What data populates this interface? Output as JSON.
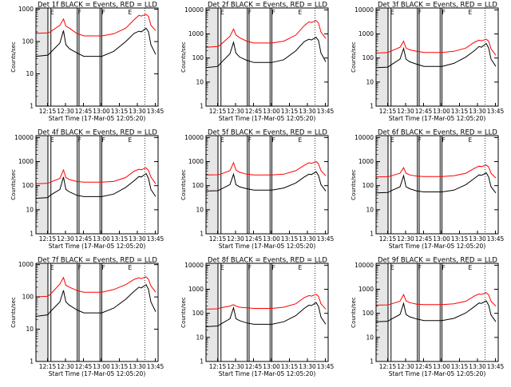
{
  "colors": {
    "events": "#000000",
    "lld": "#ff0000",
    "background": "#ffffff",
    "axes": "#000000"
  },
  "common": {
    "ylabel": "Counts/sec",
    "xlabel": "Start Time (17-Mar-05 12:05:20)",
    "xticks": [
      "12:15",
      "12:30",
      "12:45",
      "13:00",
      "13:15",
      "13:30",
      "13:45"
    ],
    "xtick_minutes": [
      9.67,
      24.67,
      39.67,
      54.67,
      69.67,
      84.67,
      99.67
    ],
    "xlim_minutes_from_start": [
      0,
      102
    ],
    "ylim": [
      1,
      12000
    ],
    "yscale": "log",
    "decade_ticks": [
      {
        "value": 1,
        "label": "1"
      },
      {
        "value": 10,
        "label": "10"
      },
      {
        "value": 100,
        "label": "100"
      },
      {
        "value": 1000,
        "label": "1000"
      },
      {
        "value": 10000,
        "label": "10000"
      }
    ],
    "flag_markers": [
      {
        "minute": 12,
        "label": "E"
      },
      {
        "minute": 35,
        "label": "F"
      },
      {
        "minute": 55,
        "label": "F"
      },
      {
        "minute": 77,
        "label": "E"
      }
    ],
    "solid_vlines_minutes": [
      10,
      12.5,
      34.5,
      36,
      53.5,
      55
    ],
    "dotted_vlines_minutes": [
      91
    ],
    "gray_band_minutes": [
      0,
      10
    ]
  },
  "chart_data": [
    {
      "type": "line",
      "title": "Det 1f BLACK = Events, RED = LLD",
      "ytick_labels": [
        "1",
        "10",
        "100",
        "1000"
      ],
      "ylim": [
        1,
        1100
      ],
      "series": [
        {
          "color": "#ff0000",
          "x": [
            0,
            10,
            12,
            20,
            23,
            25,
            28,
            34,
            40,
            55,
            65,
            75,
            82,
            86,
            88,
            92,
            94,
            96,
            100
          ],
          "y": [
            180,
            185,
            200,
            320,
            500,
            300,
            260,
            180,
            150,
            150,
            175,
            260,
            480,
            650,
            620,
            700,
            600,
            320,
            220
          ]
        },
        {
          "color": "#000000",
          "x": [
            0,
            10,
            12,
            20,
            23,
            25,
            28,
            34,
            40,
            55,
            65,
            75,
            82,
            86,
            88,
            92,
            94,
            96,
            100
          ],
          "y": [
            35,
            38,
            45,
            90,
            220,
            80,
            60,
            45,
            35,
            35,
            50,
            100,
            180,
            210,
            200,
            260,
            200,
            80,
            40
          ]
        }
      ]
    },
    {
      "type": "line",
      "title": "Det 2f BLACK = Events, RED = LLD",
      "ytick_labels": [
        "1",
        "10",
        "100",
        "1000",
        "10000"
      ],
      "ylim": [
        1,
        12000
      ],
      "series": [
        {
          "color": "#ff0000",
          "x": [
            0,
            10,
            12,
            20,
            23,
            25,
            28,
            34,
            40,
            55,
            65,
            75,
            82,
            86,
            88,
            92,
            94,
            96,
            100
          ],
          "y": [
            280,
            300,
            350,
            800,
            1600,
            900,
            700,
            500,
            420,
            420,
            500,
            900,
            2200,
            3200,
            3000,
            3600,
            2800,
            1200,
            650
          ]
        },
        {
          "color": "#000000",
          "x": [
            0,
            10,
            12,
            20,
            23,
            25,
            28,
            34,
            40,
            55,
            65,
            75,
            82,
            86,
            88,
            92,
            94,
            96,
            100
          ],
          "y": [
            40,
            45,
            60,
            150,
            450,
            160,
            110,
            80,
            65,
            65,
            85,
            200,
            480,
            600,
            560,
            720,
            520,
            160,
            70
          ]
        }
      ]
    },
    {
      "type": "line",
      "title": "Det 3f BLACK = Events, RED = LLD",
      "ytick_labels": [
        "1",
        "10",
        "100",
        "1000",
        "10000"
      ],
      "ylim": [
        1,
        12000
      ],
      "series": [
        {
          "color": "#ff0000",
          "x": [
            0,
            10,
            12,
            20,
            23,
            25,
            28,
            34,
            40,
            55,
            65,
            75,
            82,
            86,
            88,
            92,
            94,
            96,
            100
          ],
          "y": [
            160,
            170,
            190,
            280,
            500,
            260,
            220,
            190,
            170,
            170,
            190,
            260,
            450,
            550,
            520,
            600,
            500,
            240,
            130
          ]
        },
        {
          "color": "#000000",
          "x": [
            0,
            10,
            12,
            20,
            23,
            25,
            28,
            34,
            40,
            55,
            65,
            75,
            82,
            86,
            88,
            92,
            94,
            96,
            100
          ],
          "y": [
            40,
            42,
            50,
            90,
            250,
            90,
            70,
            55,
            45,
            45,
            60,
            110,
            200,
            300,
            280,
            400,
            260,
            90,
            45
          ]
        }
      ]
    },
    {
      "type": "line",
      "title": "Det 4f BLACK = Events, RED = LLD",
      "ytick_labels": [
        "1",
        "10",
        "100",
        "1000",
        "10000"
      ],
      "ylim": [
        1,
        12000
      ],
      "series": [
        {
          "color": "#ff0000",
          "x": [
            0,
            10,
            12,
            20,
            23,
            25,
            28,
            34,
            40,
            55,
            65,
            75,
            82,
            86,
            88,
            92,
            94,
            96,
            100
          ],
          "y": [
            120,
            125,
            140,
            200,
            450,
            220,
            180,
            150,
            140,
            140,
            150,
            220,
            400,
            480,
            460,
            550,
            430,
            230,
            120
          ]
        },
        {
          "color": "#000000",
          "x": [
            0,
            10,
            12,
            20,
            23,
            25,
            28,
            34,
            40,
            55,
            65,
            75,
            82,
            86,
            88,
            92,
            94,
            96,
            100
          ],
          "y": [
            30,
            32,
            40,
            70,
            230,
            70,
            55,
            40,
            35,
            35,
            45,
            85,
            160,
            240,
            230,
            320,
            200,
            70,
            35
          ]
        }
      ]
    },
    {
      "type": "line",
      "title": "Det 5f BLACK = Events, RED = LLD",
      "ytick_labels": [
        "1",
        "10",
        "100",
        "1000",
        "10000"
      ],
      "ylim": [
        1,
        12000
      ],
      "series": [
        {
          "color": "#ff0000",
          "x": [
            0,
            10,
            12,
            20,
            23,
            25,
            28,
            34,
            40,
            55,
            65,
            75,
            82,
            86,
            88,
            92,
            94,
            96,
            100
          ],
          "y": [
            280,
            285,
            300,
            420,
            900,
            450,
            360,
            300,
            280,
            280,
            300,
            420,
            700,
            900,
            850,
            1000,
            800,
            420,
            260
          ]
        },
        {
          "color": "#000000",
          "x": [
            0,
            10,
            12,
            20,
            23,
            25,
            28,
            34,
            40,
            55,
            65,
            75,
            82,
            86,
            88,
            92,
            94,
            96,
            100
          ],
          "y": [
            60,
            62,
            70,
            110,
            300,
            110,
            90,
            75,
            65,
            65,
            80,
            130,
            230,
            300,
            290,
            380,
            260,
            110,
            60
          ]
        }
      ]
    },
    {
      "type": "line",
      "title": "Det 6f BLACK = Events, RED = LLD",
      "ytick_labels": [
        "1",
        "10",
        "100",
        "1000",
        "10000"
      ],
      "ylim": [
        1,
        12000
      ],
      "series": [
        {
          "color": "#ff0000",
          "x": [
            0,
            10,
            12,
            20,
            23,
            25,
            28,
            34,
            40,
            55,
            65,
            75,
            82,
            86,
            88,
            92,
            94,
            96,
            100
          ],
          "y": [
            230,
            235,
            250,
            330,
            560,
            330,
            280,
            250,
            240,
            240,
            260,
            330,
            520,
            650,
            620,
            720,
            600,
            330,
            210
          ]
        },
        {
          "color": "#000000",
          "x": [
            0,
            10,
            12,
            20,
            23,
            25,
            28,
            34,
            40,
            55,
            65,
            75,
            82,
            86,
            88,
            92,
            94,
            96,
            100
          ],
          "y": [
            50,
            52,
            60,
            90,
            260,
            90,
            75,
            60,
            55,
            55,
            65,
            110,
            200,
            280,
            270,
            340,
            230,
            90,
            50
          ]
        }
      ]
    },
    {
      "type": "line",
      "title": "Det 7f BLACK = Events, RED = LLD",
      "ytick_labels": [
        "1",
        "10",
        "100",
        "1000"
      ],
      "ylim": [
        1,
        1100
      ],
      "series": [
        {
          "color": "#ff0000",
          "x": [
            0,
            10,
            12,
            20,
            23,
            25,
            28,
            34,
            40,
            55,
            65,
            75,
            82,
            86,
            88,
            92,
            94,
            96,
            100
          ],
          "y": [
            100,
            105,
            120,
            250,
            400,
            230,
            200,
            160,
            140,
            140,
            170,
            240,
            350,
            390,
            370,
            420,
            350,
            220,
            140
          ]
        },
        {
          "color": "#000000",
          "x": [
            0,
            10,
            12,
            20,
            23,
            25,
            28,
            34,
            40,
            55,
            65,
            75,
            82,
            86,
            88,
            92,
            94,
            96,
            100
          ],
          "y": [
            25,
            28,
            35,
            70,
            160,
            70,
            55,
            40,
            32,
            32,
            45,
            85,
            150,
            200,
            190,
            240,
            170,
            70,
            35
          ]
        }
      ]
    },
    {
      "type": "line",
      "title": "Det 8f BLACK = Events, RED = LLD",
      "ytick_labels": [
        "1",
        "10",
        "100",
        "1000",
        "10000"
      ],
      "ylim": [
        1,
        12000
      ],
      "series": [
        {
          "color": "#ff0000",
          "x": [
            0,
            10,
            12,
            20,
            23,
            25,
            28,
            34,
            40,
            55,
            65,
            75,
            82,
            86,
            88,
            92,
            94,
            96,
            100
          ],
          "y": [
            150,
            155,
            170,
            200,
            230,
            200,
            180,
            170,
            160,
            160,
            180,
            250,
            450,
            550,
            520,
            620,
            500,
            250,
            150
          ]
        },
        {
          "color": "#000000",
          "x": [
            0,
            10,
            12,
            20,
            23,
            25,
            28,
            34,
            40,
            55,
            65,
            75,
            82,
            86,
            88,
            92,
            94,
            96,
            100
          ],
          "y": [
            28,
            30,
            35,
            60,
            170,
            60,
            50,
            40,
            35,
            35,
            45,
            80,
            160,
            220,
            210,
            280,
            190,
            70,
            35
          ]
        }
      ]
    },
    {
      "type": "line",
      "title": "Det 9f BLACK = Events, RED = LLD",
      "ytick_labels": [
        "1",
        "10",
        "100",
        "1000",
        "10000"
      ],
      "ylim": [
        1,
        12000
      ],
      "series": [
        {
          "color": "#ff0000",
          "x": [
            0,
            10,
            12,
            20,
            23,
            25,
            28,
            34,
            40,
            55,
            65,
            75,
            82,
            86,
            88,
            92,
            94,
            96,
            100
          ],
          "y": [
            220,
            225,
            240,
            320,
            600,
            330,
            280,
            240,
            230,
            230,
            250,
            320,
            520,
            640,
            610,
            720,
            590,
            320,
            200
          ]
        },
        {
          "color": "#000000",
          "x": [
            0,
            10,
            12,
            20,
            23,
            25,
            28,
            34,
            40,
            55,
            65,
            75,
            82,
            86,
            88,
            92,
            94,
            96,
            100
          ],
          "y": [
            45,
            47,
            55,
            90,
            260,
            90,
            72,
            58,
            50,
            50,
            62,
            105,
            190,
            270,
            260,
            330,
            220,
            85,
            45
          ]
        }
      ]
    }
  ]
}
